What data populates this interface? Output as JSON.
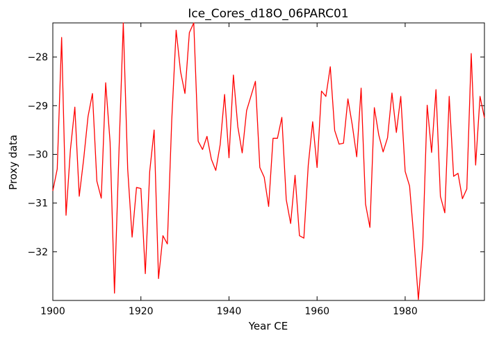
{
  "chart_data": {
    "type": "line",
    "title": "Ice_Cores_d18O_06PARC01",
    "xlabel": "Year CE",
    "ylabel": "Proxy data",
    "xlim": [
      1900,
      1998
    ],
    "ylim": [
      -33.0,
      -27.3
    ],
    "xticks": [
      1900,
      1920,
      1940,
      1960,
      1980
    ],
    "yticks": [
      -32,
      -31,
      -30,
      -29,
      -28
    ],
    "xtick_labels": [
      "1900",
      "1920",
      "1940",
      "1960",
      "1980"
    ],
    "ytick_labels": [
      "−32",
      "−31",
      "−30",
      "−29",
      "−28"
    ],
    "grid": false,
    "line_color": "#ff0000",
    "series": [
      {
        "x": [
          1900,
          1901,
          1902,
          1903,
          1904,
          1905,
          1906,
          1907,
          1908,
          1909,
          1910,
          1911,
          1912,
          1913,
          1914,
          1915,
          1916,
          1917,
          1918,
          1919,
          1920,
          1921,
          1922,
          1923,
          1924,
          1925,
          1926,
          1927,
          1928,
          1929,
          1930,
          1931,
          1932,
          1933,
          1934,
          1935,
          1936,
          1937,
          1938,
          1939,
          1940,
          1941,
          1942,
          1943,
          1944,
          1945,
          1946,
          1947,
          1948,
          1949,
          1950,
          1951,
          1952,
          1953,
          1954,
          1955,
          1956,
          1957,
          1958,
          1959,
          1960,
          1961,
          1962,
          1963,
          1964,
          1965,
          1966,
          1967,
          1968,
          1969,
          1970,
          1971,
          1972,
          1973,
          1974,
          1975,
          1976,
          1977,
          1978,
          1979,
          1980,
          1981,
          1982,
          1983,
          1984,
          1985,
          1986,
          1987,
          1988,
          1989,
          1990,
          1991,
          1992,
          1993,
          1994,
          1995,
          1996,
          1997,
          1998
        ],
        "values": [
          -30.75,
          -30.3,
          -27.6,
          -31.25,
          -29.9,
          -29.03,
          -30.86,
          -30.1,
          -29.22,
          -28.75,
          -30.55,
          -30.9,
          -28.53,
          -29.75,
          -32.85,
          -30.0,
          -27.3,
          -30.3,
          -31.7,
          -30.68,
          -30.7,
          -32.45,
          -30.35,
          -29.5,
          -32.55,
          -31.67,
          -31.84,
          -29.3,
          -27.45,
          -28.3,
          -28.75,
          -27.5,
          -27.3,
          -29.73,
          -29.9,
          -29.63,
          -30.1,
          -30.33,
          -29.8,
          -28.77,
          -30.07,
          -28.37,
          -29.43,
          -29.97,
          -29.1,
          -28.8,
          -28.5,
          -30.27,
          -30.47,
          -31.07,
          -29.67,
          -29.67,
          -29.24,
          -30.93,
          -31.42,
          -30.43,
          -31.67,
          -31.72,
          -30.22,
          -29.33,
          -30.27,
          -28.7,
          -28.81,
          -28.2,
          -29.51,
          -29.79,
          -29.77,
          -28.86,
          -29.4,
          -30.05,
          -28.64,
          -31.02,
          -31.5,
          -29.04,
          -29.6,
          -29.95,
          -29.66,
          -28.74,
          -29.55,
          -28.81,
          -30.35,
          -30.65,
          -31.75,
          -32.98,
          -31.85,
          -28.99,
          -29.96,
          -28.67,
          -30.86,
          -31.2,
          -28.81,
          -30.45,
          -30.39,
          -30.91,
          -30.71,
          -27.93,
          -30.22,
          -28.81,
          -29.25
        ]
      }
    ]
  }
}
